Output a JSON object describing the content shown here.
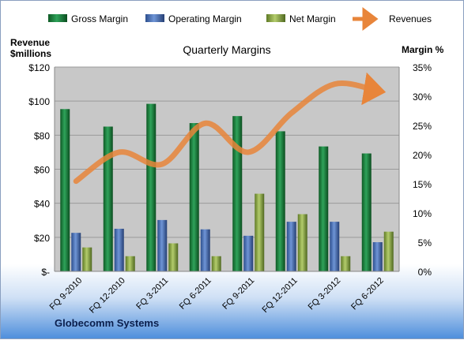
{
  "footer": "Globecomm Systems",
  "colors": {
    "gross": "#1f7a3a",
    "operating": "#4a6fb0",
    "net": "#8ea84a",
    "revenues": "#e8853a",
    "plot_bg": "#c8c8c8"
  },
  "chart_data": {
    "type": "bar",
    "title": "Quarterly Margins",
    "ylabel_left": "Revenue $millions",
    "ylabel_right": "Margin %",
    "categories": [
      "FQ 9-2010",
      "FQ 12-2010",
      "FQ 3-2011",
      "FQ 6-2011",
      "FQ 9-2011",
      "FQ 12-2011",
      "FQ 3-2012",
      "FQ 6-2012"
    ],
    "left_axis": {
      "min": 0,
      "max": 120,
      "ticks": [
        "$-",
        "$20",
        "$40",
        "$60",
        "$80",
        "$100",
        "$120"
      ]
    },
    "right_axis": {
      "min": 0,
      "max": 35,
      "ticks": [
        "0%",
        "5%",
        "10%",
        "15%",
        "20%",
        "25%",
        "30%",
        "35%"
      ]
    },
    "legend_position": "top",
    "grid": true,
    "series": [
      {
        "name": "Gross Margin",
        "axis": "right",
        "values": [
          27.8,
          24.8,
          28.7,
          25.4,
          26.6,
          24.0,
          21.4,
          20.2
        ]
      },
      {
        "name": "Operating Margin",
        "axis": "right",
        "values": [
          6.6,
          7.3,
          8.8,
          7.2,
          6.1,
          8.5,
          8.5,
          5.0
        ]
      },
      {
        "name": "Net Margin",
        "axis": "right",
        "values": [
          4.1,
          2.6,
          4.8,
          2.6,
          13.3,
          9.8,
          2.6,
          6.8
        ]
      },
      {
        "name": "Revenues",
        "axis": "left",
        "type": "line",
        "values": [
          53,
          70,
          63,
          87,
          70,
          93,
          110,
          106
        ]
      }
    ]
  }
}
